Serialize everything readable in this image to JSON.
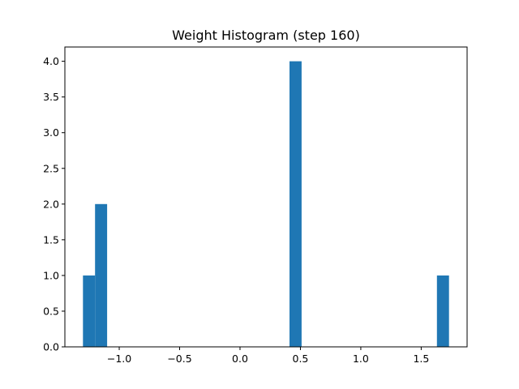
{
  "chart_data": {
    "type": "bar",
    "title": "Weight Histogram (step 160)",
    "xlabel": "",
    "ylabel": "",
    "bar_color": "#1f77b4",
    "grid": false,
    "legend": false,
    "xlim": [
      -1.45,
      1.88
    ],
    "ylim": [
      0,
      4.2
    ],
    "x_ticks": [
      {
        "value": -1.0,
        "label": "−1.0"
      },
      {
        "value": -0.5,
        "label": "−0.5"
      },
      {
        "value": 0.0,
        "label": "0.0"
      },
      {
        "value": 0.5,
        "label": "0.5"
      },
      {
        "value": 1.0,
        "label": "1.0"
      },
      {
        "value": 1.5,
        "label": "1.5"
      }
    ],
    "y_ticks": [
      {
        "value": 0.0,
        "label": "0.0"
      },
      {
        "value": 0.5,
        "label": "0.5"
      },
      {
        "value": 1.0,
        "label": "1.0"
      },
      {
        "value": 1.5,
        "label": "1.5"
      },
      {
        "value": 2.0,
        "label": "2.0"
      },
      {
        "value": 2.5,
        "label": "2.5"
      },
      {
        "value": 3.0,
        "label": "3.0"
      },
      {
        "value": 3.5,
        "label": "3.5"
      },
      {
        "value": 4.0,
        "label": "4.0"
      }
    ],
    "bins": [
      {
        "x0": -1.3,
        "x1": -1.2,
        "count": 1
      },
      {
        "x0": -1.2,
        "x1": -1.1,
        "count": 2
      },
      {
        "x0": 0.41,
        "x1": 0.51,
        "count": 4
      },
      {
        "x0": 1.63,
        "x1": 1.73,
        "count": 1
      }
    ]
  }
}
